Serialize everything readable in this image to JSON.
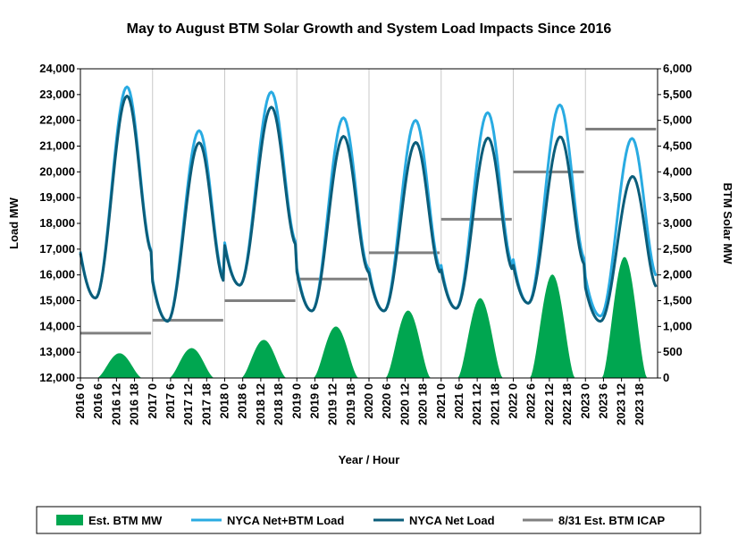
{
  "chart_data": {
    "type": "line",
    "title": "May to August BTM Solar Growth and System Load Impacts Since 2016",
    "xlabel": "Year / Hour",
    "ylabel_left": "Load MW",
    "ylabel_right": "BTM Solar MW",
    "ylim_left": [
      12000,
      24000
    ],
    "ylim_right": [
      0,
      6000
    ],
    "yticks_left": [
      "12,000",
      "13,000",
      "14,000",
      "15,000",
      "16,000",
      "17,000",
      "18,000",
      "19,000",
      "20,000",
      "21,000",
      "22,000",
      "23,000",
      "24,000"
    ],
    "yticks_right": [
      "0",
      "500",
      "1,000",
      "1,500",
      "2,000",
      "2,500",
      "3,000",
      "3,500",
      "4,000",
      "4,500",
      "5,000",
      "5,500",
      "6,000"
    ],
    "years": [
      "2016",
      "2017",
      "2018",
      "2019",
      "2020",
      "2021",
      "2022",
      "2023"
    ],
    "hour_ticks": [
      "0",
      "6",
      "12",
      "18"
    ],
    "x_tick_labels": [
      "2016 0",
      "2016 6",
      "2016 12",
      "2016 18",
      "2017 0",
      "2017 6",
      "2017 12",
      "2017 18",
      "2018 0",
      "2018 6",
      "2018 12",
      "2018 18",
      "2019 0",
      "2019 6",
      "2019 12",
      "2019 18",
      "2020 0",
      "2020 6",
      "2020 12",
      "2020 18",
      "2021 0",
      "2021 6",
      "2021 12",
      "2021 18",
      "2022 0",
      "2022 6",
      "2022 12",
      "2022 18",
      "2023 0",
      "2023 6",
      "2023 12",
      "2023 18"
    ],
    "grid": "vertical at each year start",
    "legend_position": "bottom",
    "series": [
      {
        "name": "Est. BTM MW",
        "type": "area",
        "axis": "right",
        "color": "#00a650",
        "peaks": [
          480,
          580,
          740,
          1000,
          1310,
          1550,
          2010,
          2350
        ]
      },
      {
        "name": "NYCA Net+BTM Load",
        "type": "line",
        "axis": "left",
        "color": "#29abe2",
        "min_by_year": [
          15100,
          14200,
          15600,
          14600,
          14600,
          14700,
          14900,
          14400
        ],
        "peak_by_year": [
          23300,
          21600,
          23100,
          22100,
          22000,
          22300,
          22600,
          21300
        ]
      },
      {
        "name": "NYCA Net Load",
        "type": "line",
        "axis": "left",
        "color": "#0b5d7a",
        "min_by_year": [
          15100,
          14200,
          15600,
          14600,
          14600,
          14700,
          14900,
          14200
        ],
        "peak_by_year": [
          23000,
          21200,
          22600,
          21500,
          21300,
          21500,
          21600,
          20100
        ]
      },
      {
        "name": "8/31 Est. BTM ICAP",
        "type": "step",
        "axis": "right",
        "color": "#808080",
        "values": [
          870,
          1120,
          1500,
          1920,
          2430,
          3080,
          4000,
          4830
        ]
      }
    ]
  },
  "legend": {
    "items": [
      {
        "label": "Est. BTM MW",
        "color": "#00a650",
        "kind": "swatch"
      },
      {
        "label": "NYCA Net+BTM Load",
        "color": "#29abe2",
        "kind": "line"
      },
      {
        "label": "NYCA Net Load",
        "color": "#0b5d7a",
        "kind": "line"
      },
      {
        "label": "8/31 Est. BTM ICAP",
        "color": "#808080",
        "kind": "line"
      }
    ]
  }
}
